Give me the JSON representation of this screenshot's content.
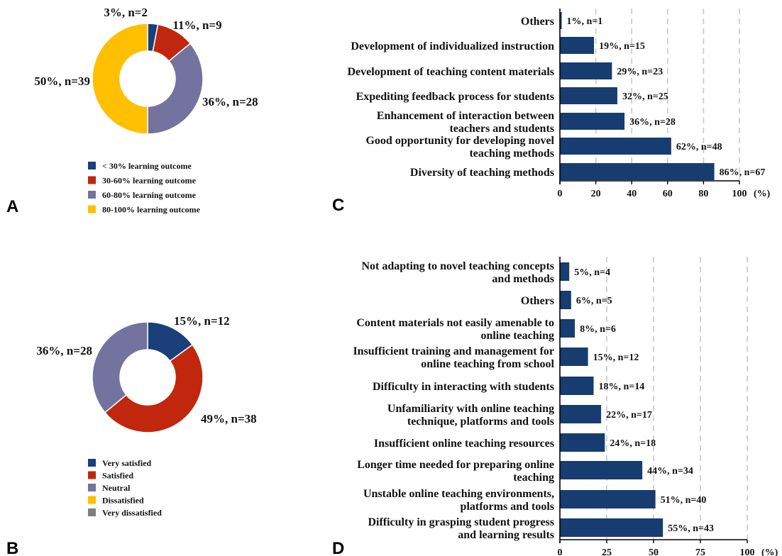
{
  "panels": {
    "A": {
      "letter": "A",
      "colors": [
        "#1a3f7a",
        "#c0270d",
        "#74739f",
        "#fec000"
      ],
      "chart_data": {
        "type": "pie",
        "slices": [
          {
            "label": "3%, n=2",
            "value": 3,
            "n": 2
          },
          {
            "label": "11%, n=9",
            "value": 11,
            "n": 9
          },
          {
            "label": "36%, n=28",
            "value": 36,
            "n": 28
          },
          {
            "label": "50%, n=39",
            "value": 50,
            "n": 39
          }
        ],
        "legend": [
          "< 30% learning outcome",
          "30-60% learning outcome",
          "60-80% learning outcome",
          "80-100% learning outcome"
        ]
      }
    },
    "B": {
      "letter": "B",
      "colors": [
        "#1a3f7a",
        "#c0270d",
        "#74739f",
        "#fec000",
        "#7f7f7f"
      ],
      "chart_data": {
        "type": "pie",
        "slices": [
          {
            "label": "15%, n=12",
            "value": 15,
            "n": 12
          },
          {
            "label": "49%, n=38",
            "value": 49,
            "n": 38
          },
          {
            "label": "36%, n=28",
            "value": 36,
            "n": 28
          }
        ],
        "legend": [
          "Very satisfied",
          "Satisfied",
          "Neutral",
          "Dissatisfied",
          "Very dissatisfied"
        ]
      }
    },
    "C": {
      "letter": "C",
      "bar_color": "#173c70",
      "chart_data": {
        "type": "bar",
        "orientation": "horizontal",
        "categories": [
          [
            "Others"
          ],
          [
            "Development of individualized instruction"
          ],
          [
            "Development of teaching content materials"
          ],
          [
            "Expediting feedback process for students"
          ],
          [
            "Enhancement of interaction between",
            "teachers and students"
          ],
          [
            "Good opportunity for developing novel",
            "teaching methods"
          ],
          [
            "Diversity of teaching methods"
          ]
        ],
        "values": [
          1,
          19,
          29,
          32,
          36,
          62,
          86
        ],
        "data_labels": [
          "1%, n=1",
          "19%, n=15",
          "29%, n=23",
          "32%, n=25",
          "36%, n=28",
          "62%, n=48",
          "86%, n=67"
        ],
        "xlim": [
          0,
          100
        ],
        "xticks": [
          "0",
          "20",
          "40",
          "60",
          "80",
          "100"
        ],
        "xunit": "(%)",
        "grid": "dashed"
      }
    },
    "D": {
      "letter": "D",
      "bar_color": "#173c70",
      "chart_data": {
        "type": "bar",
        "orientation": "horizontal",
        "categories": [
          [
            "Not adapting to novel teaching concepts",
            "and methods"
          ],
          [
            "Others"
          ],
          [
            "Content materials not easily amenable to",
            "online teaching"
          ],
          [
            "Insufficient training and management for",
            "online teaching from school"
          ],
          [
            "Difficulty in interacting with students"
          ],
          [
            "Unfamiliarity with online teaching",
            "technique, platforms and tools"
          ],
          [
            "Insufficient online teaching resources"
          ],
          [
            "Longer time needed for preparing online",
            "teaching"
          ],
          [
            "Unstable online teaching environments,",
            "platforms and tools"
          ],
          [
            "Difficulty in grasping student progress",
            "and learning results"
          ]
        ],
        "values": [
          5,
          6,
          8,
          15,
          18,
          22,
          24,
          44,
          51,
          55
        ],
        "data_labels": [
          "5%, n=4",
          "6%, n=5",
          "8%, n=6",
          "15%, n=12",
          "18%, n=14",
          "22%, n=17",
          "24%, n=18",
          "44%, n=34",
          "51%, n=40",
          "55%, n=43"
        ],
        "xlim": [
          0,
          100
        ],
        "xticks": [
          "0",
          "25",
          "50",
          "75",
          "100"
        ],
        "xunit": "(%)",
        "grid": "dashed"
      }
    }
  }
}
